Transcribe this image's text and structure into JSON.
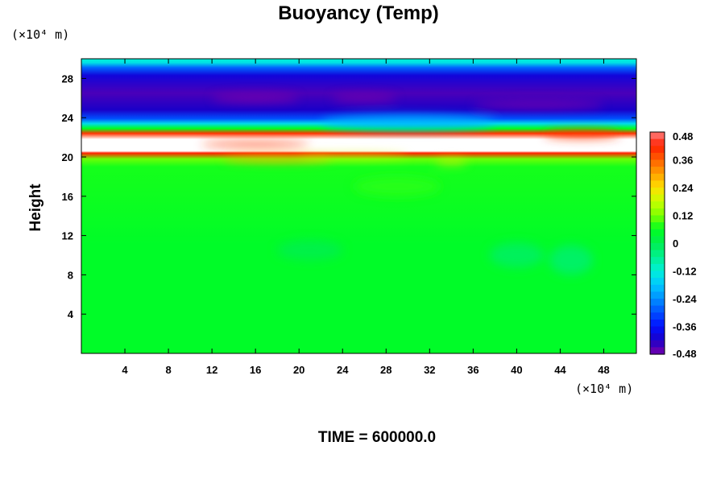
{
  "chart_data": {
    "type": "heatmap",
    "title": "Buoyancy (Temp)",
    "ylabel": "Height",
    "xlabel": "",
    "x_unit": "(×10⁴ m)",
    "y_unit": "(×10⁴ m)",
    "xlim": [
      0,
      51
    ],
    "ylim": [
      0,
      30
    ],
    "x_ticks": [
      4,
      8,
      12,
      16,
      20,
      24,
      28,
      32,
      36,
      40,
      44,
      48
    ],
    "y_ticks": [
      4,
      8,
      12,
      16,
      20,
      24,
      28
    ],
    "colorbar": {
      "ticks": [
        0.48,
        0.36,
        0.24,
        0.12,
        0,
        -0.12,
        -0.24,
        -0.36,
        -0.48
      ],
      "tick_labels": [
        "0.48",
        "0.36",
        "0.24",
        "0.12",
        "0",
        "-0.12",
        "-0.24",
        "-0.36",
        "-0.48"
      ],
      "range": [
        -0.48,
        0.48
      ]
    },
    "time_label": "TIME = 600000.0",
    "field_profile": [
      {
        "height": 0,
        "value": 0.05
      },
      {
        "height": 11,
        "value": 0.05
      },
      {
        "height": 19,
        "value": 0.07
      },
      {
        "height": 19.8,
        "value": 0.11
      },
      {
        "height": 20.4,
        "value": 0.42
      },
      {
        "height": 20.6,
        "value": 0.6
      },
      {
        "height": 21.8,
        "value": 0.6
      },
      {
        "height": 22.4,
        "value": 0.4
      },
      {
        "height": 22.9,
        "value": 0.06
      },
      {
        "height": 23.4,
        "value": -0.15
      },
      {
        "height": 23.9,
        "value": -0.3
      },
      {
        "height": 24.8,
        "value": -0.42
      },
      {
        "height": 26.5,
        "value": -0.45
      },
      {
        "height": 28.3,
        "value": -0.4
      },
      {
        "height": 29.1,
        "value": -0.28
      },
      {
        "height": 29.6,
        "value": -0.14
      },
      {
        "height": 30,
        "value": -0.12
      }
    ],
    "features": [
      {
        "x": 16,
        "y": 26.0,
        "value": -0.52,
        "width": 8,
        "height": 0.9
      },
      {
        "x": 26,
        "y": 26.0,
        "value": -0.5,
        "width": 6,
        "height": 0.8
      },
      {
        "x": 42,
        "y": 25.3,
        "value": -0.48,
        "width": 12,
        "height": 0.8
      },
      {
        "x": 30,
        "y": 23.5,
        "value": -0.2,
        "width": 16,
        "height": 1.5
      },
      {
        "x": 46,
        "y": 22.3,
        "value": 0.4,
        "width": 7,
        "height": 0.8
      },
      {
        "x": 16,
        "y": 21.3,
        "value": 0.4,
        "width": 10,
        "height": 0.5
      },
      {
        "x": 18,
        "y": 19.8,
        "value": 0.3,
        "width": 10,
        "height": 0.6
      },
      {
        "x": 25,
        "y": 20.1,
        "value": 0.2,
        "width": 10,
        "height": 0.4
      },
      {
        "x": 34,
        "y": 19.5,
        "value": 0.22,
        "width": 3,
        "height": 0.5
      },
      {
        "x": 21,
        "y": 10.5,
        "value": 0.0,
        "width": 6,
        "height": 2
      },
      {
        "x": 40,
        "y": 10.0,
        "value": -0.02,
        "width": 5,
        "height": 2.5
      },
      {
        "x": 45,
        "y": 9.5,
        "value": -0.03,
        "width": 4,
        "height": 3
      },
      {
        "x": 29,
        "y": 17.0,
        "value": 0.08,
        "width": 8,
        "height": 2
      }
    ]
  }
}
